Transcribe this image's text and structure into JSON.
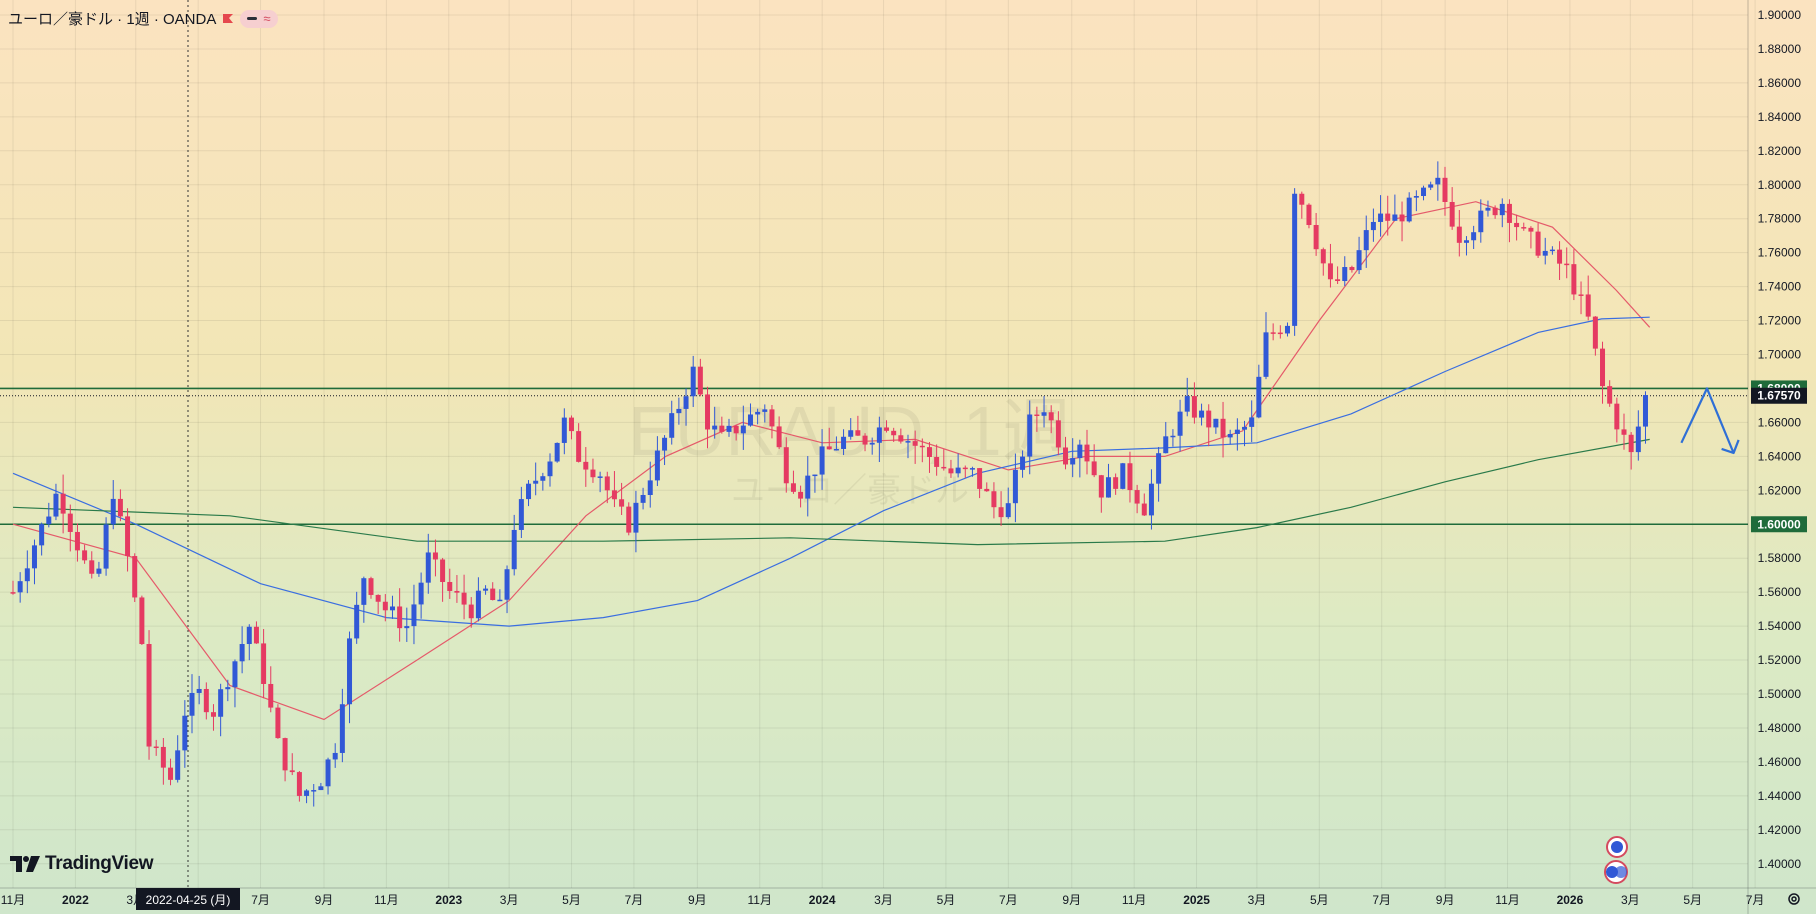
{
  "header": {
    "title": "ユーロ／豪ドル · 1週 · OANDA",
    "pill_icon": "approx-icon",
    "pill_text": "≈"
  },
  "watermark": {
    "line1": "EURAUD, 1週",
    "line2": "ユーロ／豪ドル"
  },
  "branding": {
    "logo": "TradingView"
  },
  "colors": {
    "bull": "#3158d6",
    "bear": "#e53a62",
    "ma_short": "#e55a6a",
    "ma_mid": "#3a6ee0",
    "ma_long": "#2a7a4a",
    "hline": "#1f6b3a",
    "arrow": "#2f6fd6"
  },
  "chart_data": {
    "type": "candlestick",
    "title": "ユーロ／豪ドル · 1週 · OANDA",
    "ylim": [
      1.38,
      1.91
    ],
    "y_ticks": [
      "1.90000",
      "1.88000",
      "1.86000",
      "1.84000",
      "1.82000",
      "1.80000",
      "1.78000",
      "1.76000",
      "1.74000",
      "1.72000",
      "1.70000",
      "1.68000",
      "1.66000",
      "1.64000",
      "1.62000",
      "1.60000",
      "1.58000",
      "1.56000",
      "1.54000",
      "1.52000",
      "1.50000",
      "1.48000",
      "1.46000",
      "1.44000",
      "1.42000",
      "1.40000"
    ],
    "x_ticks": [
      "11月",
      "2022",
      "3月",
      "5月",
      "7月",
      "9月",
      "11月",
      "2023",
      "3月",
      "5月",
      "7月",
      "9月",
      "11月",
      "2024",
      "3月",
      "5月",
      "7月",
      "9月",
      "11月",
      "2025",
      "3月",
      "5月",
      "7月",
      "9月",
      "11月",
      "2026",
      "3月",
      "5月",
      "7月"
    ],
    "crosshair_date": "2022-04-25 (月)",
    "price_labels": {
      "current": "1.67570",
      "support": "1.60000",
      "resistance": "1.68000"
    },
    "horizontal_lines": [
      1.68,
      1.6
    ],
    "current_price": 1.6757,
    "series_points": [
      [
        "2021-11-01",
        1.56
      ],
      [
        "2021-12-15",
        1.62
      ],
      [
        "2022-01-20",
        1.56
      ],
      [
        "2022-02-07",
        1.62
      ],
      [
        "2022-02-21",
        1.58
      ],
      [
        "2022-03-07",
        1.53
      ],
      [
        "2022-03-14",
        1.47
      ],
      [
        "2022-04-04",
        1.45
      ],
      [
        "2022-04-18",
        1.49
      ],
      [
        "2022-05-02",
        1.5
      ],
      [
        "2022-05-16",
        1.49
      ],
      [
        "2022-06-06",
        1.52
      ],
      [
        "2022-06-20",
        1.54
      ],
      [
        "2022-07-04",
        1.51
      ],
      [
        "2022-07-18",
        1.47
      ],
      [
        "2022-08-08",
        1.44
      ],
      [
        "2022-08-29",
        1.45
      ],
      [
        "2022-09-12",
        1.47
      ],
      [
        "2022-09-26",
        1.53
      ],
      [
        "2022-10-10",
        1.57
      ],
      [
        "2022-10-31",
        1.55
      ],
      [
        "2022-11-21",
        1.54
      ],
      [
        "2022-12-12",
        1.58
      ],
      [
        "2023-01-02",
        1.56
      ],
      [
        "2023-01-23",
        1.55
      ],
      [
        "2023-02-06",
        1.56
      ],
      [
        "2023-02-20",
        1.55
      ],
      [
        "2023-03-06",
        1.6
      ],
      [
        "2023-03-20",
        1.62
      ],
      [
        "2023-04-10",
        1.64
      ],
      [
        "2023-04-24",
        1.66
      ],
      [
        "2023-05-08",
        1.64
      ],
      [
        "2023-05-29",
        1.63
      ],
      [
        "2023-06-12",
        1.61
      ],
      [
        "2023-06-26",
        1.6
      ],
      [
        "2023-07-10",
        1.62
      ],
      [
        "2023-07-24",
        1.64
      ],
      [
        "2023-08-14",
        1.67
      ],
      [
        "2023-08-28",
        1.69
      ],
      [
        "2023-09-11",
        1.66
      ],
      [
        "2023-09-25",
        1.65
      ],
      [
        "2023-10-16",
        1.66
      ],
      [
        "2023-11-06",
        1.67
      ],
      [
        "2023-11-27",
        1.63
      ],
      [
        "2023-12-11",
        1.62
      ],
      [
        "2024-01-01",
        1.64
      ],
      [
        "2024-01-22",
        1.65
      ],
      [
        "2024-02-12",
        1.65
      ],
      [
        "2024-03-04",
        1.66
      ],
      [
        "2024-03-25",
        1.65
      ],
      [
        "2024-04-15",
        1.64
      ],
      [
        "2024-05-06",
        1.63
      ],
      [
        "2024-05-27",
        1.63
      ],
      [
        "2024-06-17",
        1.61
      ],
      [
        "2024-07-01",
        1.61
      ],
      [
        "2024-07-22",
        1.66
      ],
      [
        "2024-08-05",
        1.67
      ],
      [
        "2024-08-26",
        1.64
      ],
      [
        "2024-09-09",
        1.65
      ],
      [
        "2024-09-30",
        1.62
      ],
      [
        "2024-10-21",
        1.63
      ],
      [
        "2024-11-11",
        1.61
      ],
      [
        "2024-12-02",
        1.65
      ],
      [
        "2024-12-23",
        1.67
      ],
      [
        "2025-01-13",
        1.66
      ],
      [
        "2025-02-03",
        1.65
      ],
      [
        "2025-02-24",
        1.66
      ],
      [
        "2025-03-10",
        1.71
      ],
      [
        "2025-03-31",
        1.72
      ],
      [
        "2025-04-07",
        1.8
      ],
      [
        "2025-04-21",
        1.78
      ],
      [
        "2025-05-12",
        1.74
      ],
      [
        "2025-06-02",
        1.75
      ],
      [
        "2025-06-23",
        1.78
      ],
      [
        "2025-07-14",
        1.78
      ],
      [
        "2025-08-04",
        1.79
      ],
      [
        "2025-08-25",
        1.8
      ],
      [
        "2025-09-15",
        1.77
      ],
      [
        "2025-10-06",
        1.78
      ],
      [
        "2025-10-27",
        1.79
      ],
      [
        "2025-11-17",
        1.77
      ],
      [
        "2025-12-08",
        1.76
      ],
      [
        "2025-12-29",
        1.75
      ],
      [
        "2026-01-19",
        1.72
      ],
      [
        "2026-02-02",
        1.68
      ],
      [
        "2026-02-16",
        1.66
      ],
      [
        "2026-03-02",
        1.64
      ],
      [
        "2026-03-16",
        1.6757
      ]
    ],
    "moving_averages": [
      {
        "points": [
          [
            "2021-11-01",
            1.6
          ],
          [
            "2022-03-01",
            1.58
          ],
          [
            "2022-06-01",
            1.505
          ],
          [
            "2022-09-01",
            1.485
          ],
          [
            "2022-12-01",
            1.52
          ],
          [
            "2023-03-01",
            1.555
          ],
          [
            "2023-05-15",
            1.605
          ],
          [
            "2023-08-01",
            1.64
          ],
          [
            "2023-10-15",
            1.66
          ],
          [
            "2024-01-01",
            1.648
          ],
          [
            "2024-04-01",
            1.65
          ],
          [
            "2024-07-01",
            1.632
          ],
          [
            "2024-09-15",
            1.64
          ],
          [
            "2024-12-01",
            1.64
          ],
          [
            "2025-02-15",
            1.655
          ],
          [
            "2025-05-01",
            1.72
          ],
          [
            "2025-07-15",
            1.78
          ],
          [
            "2025-10-01",
            1.79
          ],
          [
            "2025-12-15",
            1.775
          ],
          [
            "2026-02-15",
            1.738
          ],
          [
            "2026-03-20",
            1.716
          ]
        ]
      },
      {
        "points": [
          [
            "2021-11-01",
            1.63
          ],
          [
            "2022-03-01",
            1.6
          ],
          [
            "2022-07-01",
            1.565
          ],
          [
            "2022-11-01",
            1.545
          ],
          [
            "2023-03-01",
            1.54
          ],
          [
            "2023-06-01",
            1.545
          ],
          [
            "2023-09-01",
            1.555
          ],
          [
            "2023-12-01",
            1.58
          ],
          [
            "2024-03-01",
            1.608
          ],
          [
            "2024-06-01",
            1.63
          ],
          [
            "2024-09-01",
            1.643
          ],
          [
            "2024-12-01",
            1.645
          ],
          [
            "2025-03-01",
            1.648
          ],
          [
            "2025-06-01",
            1.665
          ],
          [
            "2025-09-01",
            1.69
          ],
          [
            "2025-12-01",
            1.713
          ],
          [
            "2026-02-01",
            1.721
          ],
          [
            "2026-03-20",
            1.722
          ]
        ]
      },
      {
        "points": [
          [
            "2021-11-01",
            1.61
          ],
          [
            "2022-06-01",
            1.605
          ],
          [
            "2022-12-01",
            1.59
          ],
          [
            "2023-06-01",
            1.59
          ],
          [
            "2023-12-01",
            1.592
          ],
          [
            "2024-06-01",
            1.588
          ],
          [
            "2024-12-01",
            1.59
          ],
          [
            "2025-03-01",
            1.598
          ],
          [
            "2025-06-01",
            1.61
          ],
          [
            "2025-09-01",
            1.625
          ],
          [
            "2025-12-01",
            1.638
          ],
          [
            "2026-03-20",
            1.65
          ]
        ]
      }
    ],
    "projection_arrow": [
      [
        "2026-04-20",
        1.648
      ],
      [
        "2026-05-15",
        1.68
      ],
      [
        "2026-06-10",
        1.642
      ]
    ]
  }
}
